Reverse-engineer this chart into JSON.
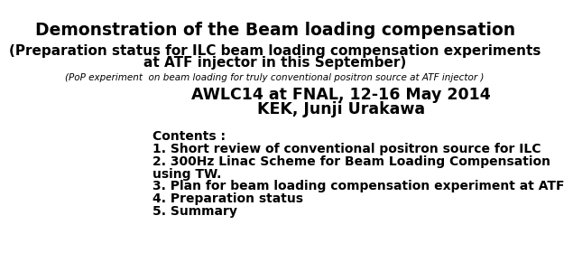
{
  "background_color": "#ffffff",
  "title": "Demonstration of the Beam loading compensation",
  "subtitle1_line1": "(Preparation status for ILC beam loading compensation experiments",
  "subtitle1_line2": "at ATF injector in this September)",
  "subtitle2": "(PoP experiment  on beam loading for truly conventional positron source at ATF injector )",
  "conference_line1": "AWLC14 at FNAL, 12-16 May 2014",
  "conference_line2": "KEK, Junji Urakawa",
  "contents_header": "Contents :",
  "contents_items": [
    "1. Short review of conventional positron source for ILC",
    "2. 300Hz Linac Scheme for Beam Loading Compensation",
    "using TW.",
    "3. Plan for beam loading compensation experiment at ATF",
    "4. Preparation status",
    "5. Summary"
  ],
  "title_fontsize": 13.5,
  "subtitle1_fontsize": 11,
  "subtitle2_fontsize": 7.5,
  "conference_fontsize": 12.5,
  "contents_fontsize": 10
}
